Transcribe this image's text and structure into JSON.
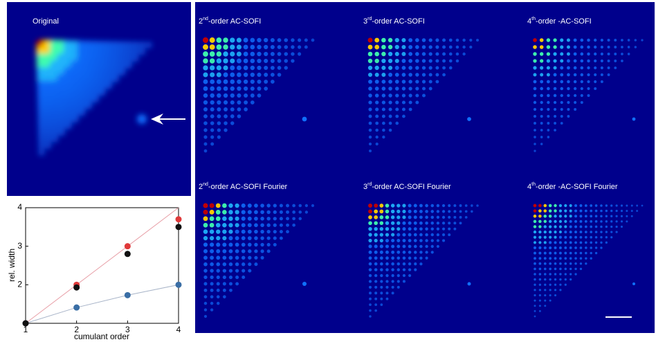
{
  "panels": [
    {
      "title": "Original"
    },
    {
      "number": "2",
      "sup": "nd",
      "text": "-order AC-SOFI"
    },
    {
      "number": "3",
      "sup": "rd",
      "text": "-order AC-SOFI"
    },
    {
      "number": "4",
      "sup": "th",
      "text": "-order -AC-SOFI"
    },
    {
      "number": "2",
      "sup": "nd",
      "text": "-order AC-SOFI Fourier"
    },
    {
      "number": "3",
      "sup": "rd",
      "text": "-order AC-SOFI Fourier"
    },
    {
      "number": "4",
      "sup": "th",
      "text": "-order -AC-SOFI Fourier"
    }
  ],
  "chart_data": {
    "type": "scatter",
    "x_label": "cumulant order",
    "y_label": "rel. width",
    "x": [
      1,
      2,
      3,
      4
    ],
    "xlim": [
      1,
      4
    ],
    "ylim": [
      1,
      4
    ],
    "xticks": [
      1,
      2,
      3,
      4
    ],
    "yticks": [
      2,
      3,
      4
    ],
    "series": [
      {
        "style": "line",
        "color": "#e8a0a8",
        "values": [
          1,
          2,
          3,
          4
        ]
      },
      {
        "style": "line",
        "color": "#a8b4c8",
        "values": [
          1,
          1.41,
          1.73,
          2
        ]
      },
      {
        "style": "marker",
        "color": "#e0393a",
        "values": [
          1,
          2,
          3,
          3.7
        ]
      },
      {
        "style": "marker",
        "color": "#3a6ea5",
        "values": [
          1,
          1.41,
          1.73,
          2
        ]
      },
      {
        "style": "marker",
        "color": "#111111",
        "values": [
          1,
          1.93,
          2.8,
          3.5
        ]
      }
    ]
  }
}
